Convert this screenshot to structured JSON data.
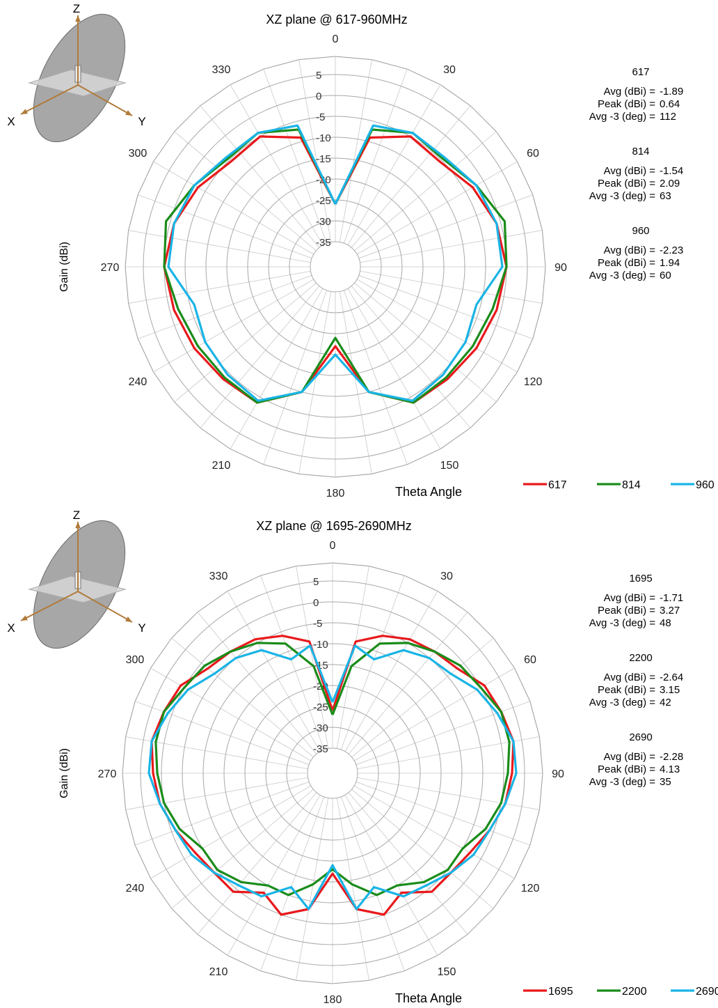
{
  "chart_data": [
    {
      "type": "polar-line",
      "title": "XZ plane @ 617-960MHz",
      "radial_label": "Gain  (dBi)",
      "angle_label": "Theta  Angle",
      "radial_ticks": [
        5,
        0,
        -5,
        -10,
        -15,
        -20,
        -25,
        -30,
        -35
      ],
      "rlim": [
        -35,
        5
      ],
      "angle_ticks": [
        0,
        30,
        60,
        90,
        120,
        150,
        180,
        210,
        240,
        270,
        300,
        330
      ],
      "grid": true,
      "legend": "bottom-right",
      "theta": [
        0,
        15,
        30,
        45,
        60,
        75,
        90,
        105,
        120,
        135,
        150,
        165,
        180,
        195,
        210,
        225,
        240,
        255,
        270,
        285,
        300,
        315,
        330,
        345,
        360
      ],
      "series": [
        {
          "name": "617",
          "color": "#e8191c",
          "values": [
            -26,
            -9,
            -5,
            -5.5,
            -3,
            -1,
            0,
            -1,
            -2,
            -3,
            -3.5,
            -10,
            -22,
            -10,
            -3.5,
            -3,
            -2,
            -1,
            0,
            -1,
            -3,
            -5.5,
            -5,
            -9,
            -26
          ],
          "stats": {
            "avg_label": "Avg (dBi) =",
            "avg": "-1.89",
            "peak_label": "Peak (dBi) =",
            "peak": "0.64",
            "avg3_label": "Avg -3 (deg) =",
            "avg3": "112"
          }
        },
        {
          "name": "814",
          "color": "#1a8c1a",
          "values": [
            -26,
            -7,
            -4,
            -4.5,
            -2,
            1,
            0,
            -2,
            -3,
            -3.5,
            -3.5,
            -10,
            -24,
            -10,
            -3.5,
            -3.5,
            -3,
            -2,
            0,
            1,
            -2,
            -4.5,
            -4,
            -7,
            -26
          ],
          "stats": {
            "avg_label": "Avg (dBi) =",
            "avg": "-1.54",
            "peak_label": "Peak (dBi) =",
            "peak": "2.09",
            "avg3_label": "Avg -3 (deg) =",
            "avg3": "63"
          }
        },
        {
          "name": "960",
          "color": "#19b4e6",
          "values": [
            -26,
            -6,
            -4,
            -4,
            -2,
            -1,
            -1,
            -6,
            -5,
            -4.5,
            -4,
            -10,
            -20,
            -10,
            -4,
            -4.5,
            -5,
            -6,
            -1,
            -1,
            -2,
            -4,
            -4,
            -6,
            -26
          ],
          "stats": {
            "avg_label": "Avg (dBi) =",
            "avg": "-2.23",
            "peak_label": "Peak (dBi) =",
            "peak": "1.94",
            "avg3_label": "Avg -3 (deg) =",
            "avg3": "60"
          }
        }
      ]
    },
    {
      "type": "polar-line",
      "title": "XZ plane @ 1695-2690MHz",
      "radial_label": "Gain  (dBi)",
      "angle_label": "Theta  Angle",
      "radial_ticks": [
        5,
        0,
        -5,
        -10,
        -15,
        -20,
        -25,
        -30,
        -35
      ],
      "rlim": [
        -35,
        5
      ],
      "angle_ticks": [
        0,
        30,
        60,
        90,
        120,
        150,
        180,
        210,
        240,
        270,
        300,
        330
      ],
      "grid": true,
      "legend": "bottom-right",
      "theta": [
        0,
        10,
        20,
        30,
        40,
        50,
        60,
        70,
        80,
        90,
        100,
        110,
        120,
        130,
        140,
        150,
        160,
        170,
        180,
        190,
        200,
        210,
        220,
        230,
        240,
        250,
        260,
        270,
        280,
        290,
        300,
        310,
        320,
        330,
        340,
        350,
        360
      ],
      "series": [
        {
          "name": "1695",
          "color": "#e8191c",
          "values": [
            -26,
            -9,
            -6,
            -4,
            -3,
            -2,
            1,
            2,
            3,
            2,
            1,
            -1,
            -3,
            -4,
            -4,
            -8,
            -5,
            -8,
            -17,
            -8,
            -5,
            -8,
            -4,
            -4,
            -3,
            -1,
            1,
            2,
            3,
            2,
            1,
            -2,
            -3,
            -4,
            -6,
            -9,
            -26
          ],
          "stats": {
            "avg_label": "Avg (dBi) =",
            "avg": "-1.71",
            "peak_label": "Peak (dBi) =",
            "peak": "3.27",
            "avg3_label": "Avg -3 (deg) =",
            "avg3": "48"
          }
        },
        {
          "name": "2200",
          "color": "#1a8c1a",
          "values": [
            -27,
            -15,
            -8,
            -5,
            -3,
            -1,
            0,
            2,
            2,
            1,
            0,
            -2,
            -5,
            -5,
            -7,
            -10,
            -10,
            -14,
            -18,
            -14,
            -10,
            -10,
            -7,
            -5,
            -5,
            -2,
            0,
            1,
            2,
            2,
            0,
            -1,
            -3,
            -5,
            -8,
            -15,
            -27
          ],
          "stats": {
            "avg_label": "Avg (dBi) =",
            "avg": "-2.64",
            "peak_label": "Peak (dBi) =",
            "peak": "3.15",
            "avg3_label": "Avg -3 (deg) =",
            "avg3": "42"
          }
        },
        {
          "name": "2690",
          "color": "#19b4e6",
          "values": [
            -24,
            -10,
            -12,
            -7,
            -5,
            -4,
            -1,
            1,
            3,
            3,
            1,
            -1,
            -2,
            -4,
            -6,
            -7,
            -12,
            -8,
            -19,
            -8,
            -12,
            -7,
            -6,
            -4,
            -2,
            -1,
            1,
            3,
            3,
            1,
            -1,
            -4,
            -5,
            -7,
            -12,
            -10,
            -24
          ],
          "stats": {
            "avg_label": "Avg (dBi) =",
            "avg": "-2.28",
            "peak_label": "Peak (dBi) =",
            "peak": "4.13",
            "avg3_label": "Avg -3 (deg) =",
            "avg3": "35"
          }
        }
      ]
    }
  ],
  "axes_icon": {
    "x": "X",
    "y": "Y",
    "z": "Z"
  }
}
